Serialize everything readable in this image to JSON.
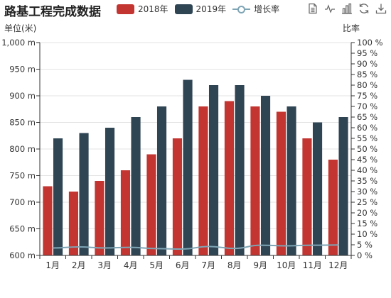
{
  "title": "路基工程完成数据",
  "legend": [
    {
      "name": "2018年",
      "color": "#c23531",
      "kind": "bar"
    },
    {
      "name": "2019年",
      "color": "#2f4554",
      "kind": "bar"
    },
    {
      "name": "增长率",
      "color": "#7fa5b5",
      "kind": "line"
    }
  ],
  "toolbox": [
    "data-view-icon",
    "line-chart-icon",
    "bar-chart-icon",
    "restore-icon",
    "save-image-icon"
  ],
  "chart_data": {
    "type": "bar",
    "categories": [
      "1月",
      "2月",
      "3月",
      "4月",
      "5月",
      "6月",
      "7月",
      "8月",
      "9月",
      "10月",
      "11月",
      "12月"
    ],
    "series": [
      {
        "name": "2018年",
        "type": "bar",
        "color": "#c23531",
        "values": [
          730,
          720,
          740,
          760,
          790,
          820,
          880,
          890,
          880,
          870,
          820,
          780
        ]
      },
      {
        "name": "2019年",
        "type": "bar",
        "color": "#2f4554",
        "values": [
          820,
          830,
          840,
          860,
          880,
          930,
          920,
          920,
          900,
          880,
          850,
          860
        ]
      },
      {
        "name": "增长率",
        "type": "line",
        "color": "#7fa5b5",
        "axis": "right",
        "values": [
          3.5,
          4.0,
          3.5,
          3.8,
          3.2,
          3.0,
          4.2,
          3.3,
          4.8,
          4.5,
          4.8,
          4.9
        ]
      }
    ],
    "yaxis_left": {
      "label": "单位(米)",
      "min": 600,
      "max": 1000,
      "interval": 50,
      "unit": " m",
      "tick_format": "thousands"
    },
    "yaxis_right": {
      "label": "比率",
      "min": 0,
      "max": 100,
      "interval": 5,
      "unit": " %"
    },
    "grid": true
  }
}
